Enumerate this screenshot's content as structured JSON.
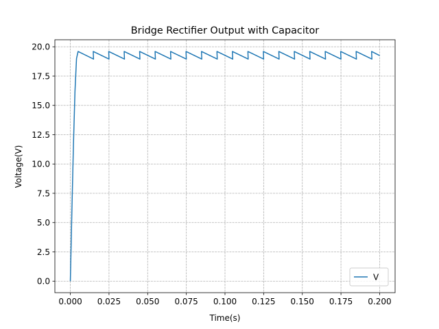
{
  "chart_data": {
    "type": "line",
    "title": "Bridge Rectifier Output with Capacitor",
    "xlabel": "Time(s)",
    "ylabel": "Voltage(V)",
    "xlim": [
      -0.01,
      0.21
    ],
    "ylim": [
      -0.98,
      20.6
    ],
    "xticks": [
      0.0,
      0.025,
      0.05,
      0.075,
      0.1,
      0.125,
      0.15,
      0.175,
      0.2
    ],
    "xtick_labels": [
      "0.000",
      "0.025",
      "0.050",
      "0.075",
      "0.100",
      "0.125",
      "0.150",
      "0.175",
      "0.200"
    ],
    "yticks": [
      0.0,
      2.5,
      5.0,
      7.5,
      10.0,
      12.5,
      15.0,
      17.5,
      20.0
    ],
    "ytick_labels": [
      "0.0",
      "2.5",
      "5.0",
      "7.5",
      "10.0",
      "12.5",
      "15.0",
      "17.5",
      "20.0"
    ],
    "grid": true,
    "legend": {
      "position": "lower-right",
      "entries": [
        "V"
      ]
    },
    "series": [
      {
        "name": "V",
        "color": "#1f77b4",
        "x": [
          0.0,
          0.001,
          0.002,
          0.003,
          0.004,
          0.005,
          0.015,
          0.0148,
          0.025,
          0.0248,
          0.035,
          0.0348,
          0.045,
          0.0448,
          0.055,
          0.0548,
          0.065,
          0.0648,
          0.075,
          0.0748,
          0.085,
          0.0848,
          0.095,
          0.0948,
          0.105,
          0.1048,
          0.115,
          0.1148,
          0.125,
          0.1248,
          0.135,
          0.1348,
          0.145,
          0.1448,
          0.155,
          0.1548,
          0.165,
          0.1648,
          0.175,
          0.1748,
          0.185,
          0.1848,
          0.195,
          0.1948,
          0.2
        ],
        "y": [
          0.0,
          6.0,
          11.6,
          16.2,
          19.0,
          19.6,
          18.95,
          19.6,
          18.95,
          19.6,
          18.95,
          19.6,
          18.95,
          19.6,
          18.95,
          19.6,
          18.95,
          19.6,
          18.95,
          19.6,
          18.95,
          19.6,
          18.95,
          19.6,
          18.95,
          19.6,
          18.95,
          19.6,
          18.95,
          19.6,
          18.95,
          19.6,
          18.95,
          19.6,
          18.95,
          19.6,
          18.95,
          19.6,
          18.95,
          19.6,
          18.95,
          19.6,
          18.95,
          19.6,
          19.25
        ]
      }
    ]
  }
}
